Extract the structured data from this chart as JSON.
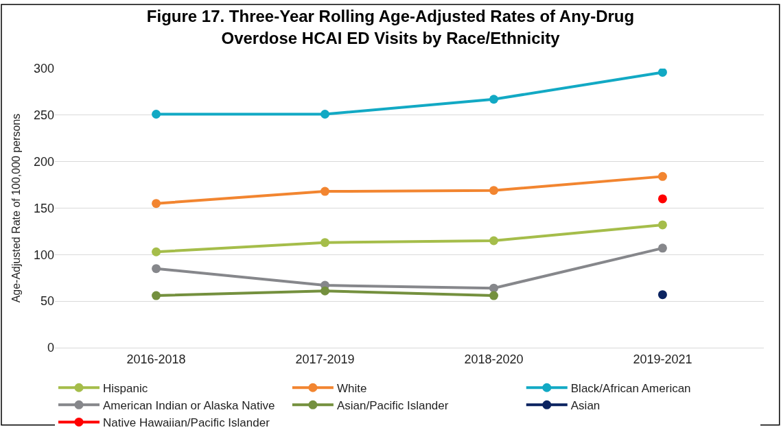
{
  "chart_data": {
    "type": "line",
    "title": "Figure 17. Three-Year Rolling Age-Adjusted Rates of Any-Drug Overdose HCAI ED Visits by Race/Ethnicity",
    "ylabel": "Age-Adjusted Rate of 100,000 persons",
    "categories": [
      "2016-2018",
      "2017-2019",
      "2018-2020",
      "2019-2021"
    ],
    "series": [
      {
        "name": "Hispanic",
        "color": "#a5bd4a",
        "values": [
          103,
          113,
          115,
          132
        ]
      },
      {
        "name": "White",
        "color": "#f28530",
        "values": [
          155,
          168,
          169,
          184
        ]
      },
      {
        "name": "Black/African American",
        "color": "#12a9c4",
        "values": [
          251,
          251,
          267,
          296
        ]
      },
      {
        "name": "American Indian or Alaska Native",
        "color": "#86878b",
        "values": [
          85,
          67,
          64,
          107
        ]
      },
      {
        "name": "Asian/Pacific Islander",
        "color": "#74903e",
        "values": [
          56,
          61,
          56,
          null
        ]
      },
      {
        "name": "Asian",
        "color": "#0b2360",
        "values": [
          null,
          null,
          null,
          57
        ]
      },
      {
        "name": "Native Hawaiian/Pacific Islander",
        "color": "#ff0000",
        "values": [
          null,
          null,
          null,
          160
        ]
      }
    ],
    "ylim": [
      0,
      300
    ],
    "yticks": [
      0,
      50,
      100,
      150,
      200,
      250,
      300
    ],
    "grid": "y",
    "legend": "bottom",
    "marker": "circle",
    "line_style": "solid"
  }
}
